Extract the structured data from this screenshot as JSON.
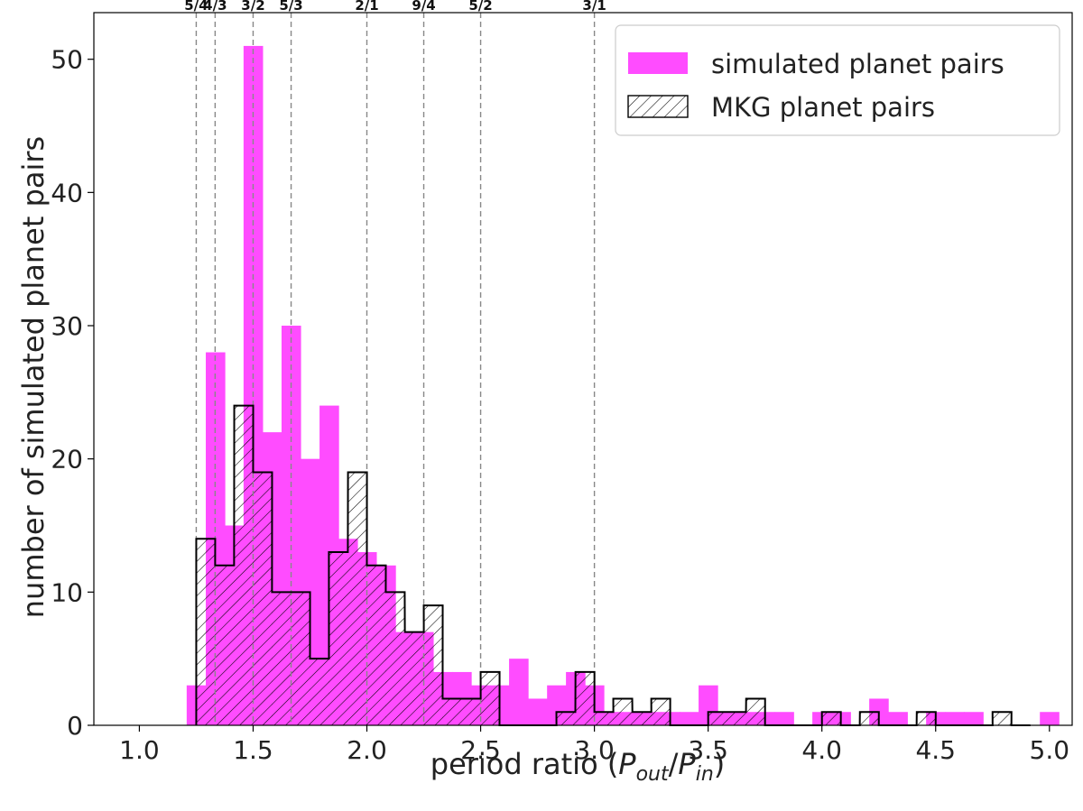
{
  "chart_data": {
    "type": "bar",
    "subtype": "histogram",
    "title": "",
    "xlabel": "period ratio (P_out/P_in)",
    "xlabel_parts": {
      "prefix": "period ratio (",
      "p1": "P",
      "s1": "out",
      "slash": "/",
      "p2": "P",
      "s2": "in",
      "suffix": ")"
    },
    "ylabel": "number of simulated planet pairs",
    "xlim": [
      0.8,
      5.1
    ],
    "ylim": [
      0,
      53.5
    ],
    "xticks": [
      "1.0",
      "1.5",
      "2.0",
      "2.5",
      "3.0",
      "3.5",
      "4.0",
      "4.5",
      "5.0"
    ],
    "yticks": [
      "0",
      "10",
      "20",
      "30",
      "40",
      "50"
    ],
    "bin_width": 0.0833,
    "legend_position": "upper right",
    "resonances": [
      {
        "label": "5/4",
        "x": 1.25
      },
      {
        "label": "4/3",
        "x": 1.333
      },
      {
        "label": "3/2",
        "x": 1.5
      },
      {
        "label": "5/3",
        "x": 1.667
      },
      {
        "label": "2/1",
        "x": 2.0
      },
      {
        "label": "9/4",
        "x": 2.25
      },
      {
        "label": "5/2",
        "x": 2.5
      },
      {
        "label": "3/1",
        "x": 3.0
      }
    ],
    "series": [
      {
        "name": "simulated planet pairs",
        "style": "filled",
        "color": "#ff4cff",
        "bin_starts": [
          1.208,
          1.292,
          1.375,
          1.458,
          1.542,
          1.625,
          1.708,
          1.792,
          1.875,
          1.958,
          2.042,
          2.125,
          2.208,
          2.292,
          2.375,
          2.458,
          2.542,
          2.625,
          2.708,
          2.792,
          2.875,
          2.958,
          3.042,
          3.125,
          3.208,
          3.292,
          3.375,
          3.458,
          3.542,
          3.625,
          3.708,
          3.792,
          3.875,
          3.958,
          4.042,
          4.125,
          4.208,
          4.292,
          4.375,
          4.458,
          4.542,
          4.625,
          4.708,
          4.792,
          4.875,
          4.958
        ],
        "values": [
          3,
          28,
          15,
          51,
          22,
          30,
          20,
          24,
          14,
          13,
          12,
          7,
          7,
          4,
          4,
          3,
          3,
          5,
          2,
          3,
          4,
          3,
          1,
          1,
          1,
          1,
          1,
          3,
          1,
          1,
          1,
          1,
          0,
          1,
          1,
          0,
          2,
          1,
          0,
          1,
          1,
          1,
          0,
          0,
          0,
          1
        ]
      },
      {
        "name": "MKG planet pairs",
        "style": "hatched",
        "color": "#000000",
        "bin_starts": [
          1.25,
          1.333,
          1.417,
          1.5,
          1.583,
          1.667,
          1.75,
          1.833,
          1.917,
          2.0,
          2.083,
          2.167,
          2.25,
          2.333,
          2.417,
          2.5,
          2.583,
          2.667,
          2.75,
          2.833,
          2.917,
          3.0,
          3.083,
          3.167,
          3.25,
          3.333,
          3.417,
          3.5,
          3.583,
          3.667,
          3.75,
          3.833,
          3.917,
          4.0,
          4.083,
          4.167,
          4.25,
          4.333,
          4.417,
          4.5,
          4.583,
          4.667,
          4.75,
          4.833
        ],
        "values": [
          14,
          12,
          24,
          19,
          10,
          10,
          5,
          13,
          19,
          12,
          10,
          7,
          9,
          2,
          2,
          4,
          0,
          0,
          0,
          1,
          4,
          1,
          2,
          1,
          2,
          0,
          0,
          1,
          1,
          2,
          0,
          0,
          0,
          1,
          0,
          1,
          0,
          0,
          1,
          0,
          0,
          0,
          1,
          0
        ]
      }
    ]
  }
}
